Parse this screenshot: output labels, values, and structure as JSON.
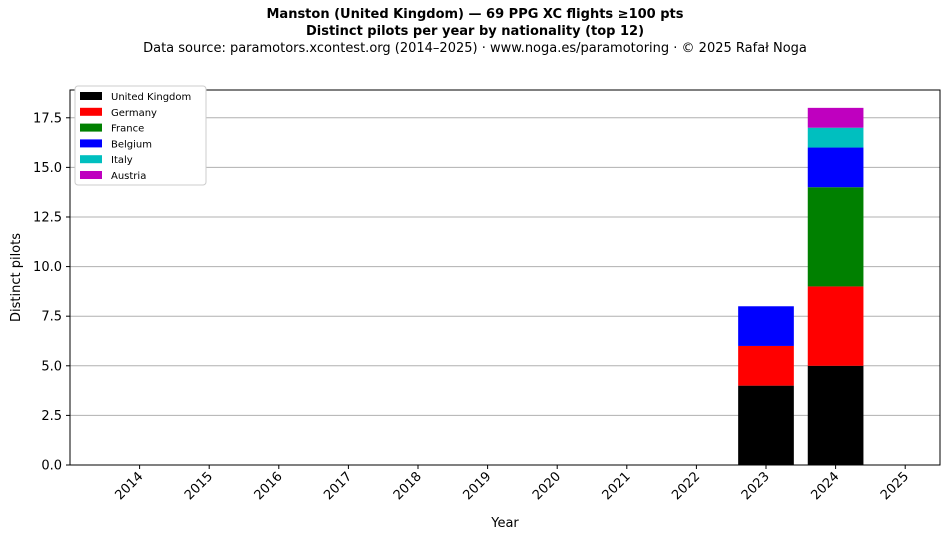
{
  "title": "Manston (United Kingdom)  —  69 PPG XC flights ≥100 pts",
  "title2": "Distinct pilots per year by nationality (top 12)",
  "subtitle": "Data source: paramotors.xcontest.org (2014–2025)  ·  www.noga.es/paramotoring  ·  © 2025 Rafał Noga",
  "chart_data": {
    "type": "bar",
    "stacked": true,
    "xlabel": "Year",
    "ylabel": "Distinct pilots",
    "categories": [
      "2014",
      "2015",
      "2016",
      "2017",
      "2018",
      "2019",
      "2020",
      "2021",
      "2022",
      "2023",
      "2024",
      "2025"
    ],
    "ylim": [
      0,
      18.9
    ],
    "yticks": [
      "0.0",
      "2.5",
      "5.0",
      "7.5",
      "10.0",
      "12.5",
      "15.0",
      "17.5"
    ],
    "grid": "horizontal",
    "legend_position": "top-left",
    "series": [
      {
        "name": "United Kingdom",
        "color": "#000000",
        "values": [
          0,
          0,
          0,
          0,
          0,
          0,
          0,
          0,
          0,
          4,
          5,
          0
        ]
      },
      {
        "name": "Germany",
        "color": "#ff0000",
        "values": [
          0,
          0,
          0,
          0,
          0,
          0,
          0,
          0,
          0,
          2,
          4,
          0
        ]
      },
      {
        "name": "France",
        "color": "#008000",
        "values": [
          0,
          0,
          0,
          0,
          0,
          0,
          0,
          0,
          0,
          0,
          5,
          0
        ]
      },
      {
        "name": "Belgium",
        "color": "#0000ff",
        "values": [
          0,
          0,
          0,
          0,
          0,
          0,
          0,
          0,
          0,
          2,
          2,
          0
        ]
      },
      {
        "name": "Italy",
        "color": "#00bfbf",
        "values": [
          0,
          0,
          0,
          0,
          0,
          0,
          0,
          0,
          0,
          0,
          1,
          0
        ]
      },
      {
        "name": "Austria",
        "color": "#bf00bf",
        "values": [
          0,
          0,
          0,
          0,
          0,
          0,
          0,
          0,
          0,
          0,
          1,
          0
        ]
      }
    ]
  }
}
